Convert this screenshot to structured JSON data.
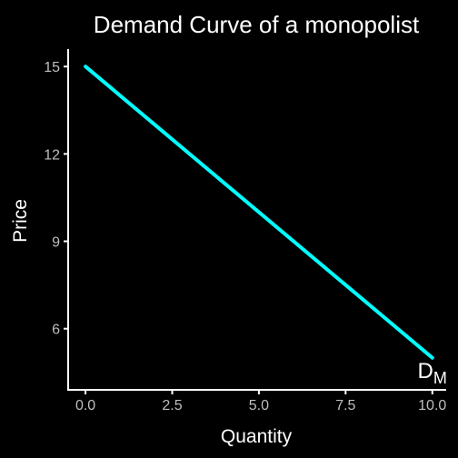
{
  "chart_data": {
    "type": "line",
    "title": "Demand Curve of a monopolist",
    "xlabel": "Quantity",
    "ylabel": "Price",
    "xlim": [
      -0.5,
      10.4
    ],
    "ylim": [
      3.9,
      15.6
    ],
    "xticks": [
      0,
      2.5,
      5,
      7.5,
      10
    ],
    "xtick_labels": [
      "0.0",
      "2.5",
      "5.0",
      "7.5",
      "10.0"
    ],
    "yticks": [
      6,
      9,
      12,
      15
    ],
    "ytick_labels": [
      "6",
      "9",
      "12",
      "15"
    ],
    "grid": false,
    "series": [
      {
        "x": [
          0,
          10
        ],
        "y": [
          15,
          5
        ],
        "color": "#00ffff"
      }
    ],
    "annotation": {
      "main": "D",
      "subscript": "M",
      "x": 10,
      "y": 4.3
    }
  },
  "colors": {
    "background": "#000000",
    "axis": "#ffffff",
    "tick_text": "#bebebe",
    "line": "#00ffff"
  }
}
